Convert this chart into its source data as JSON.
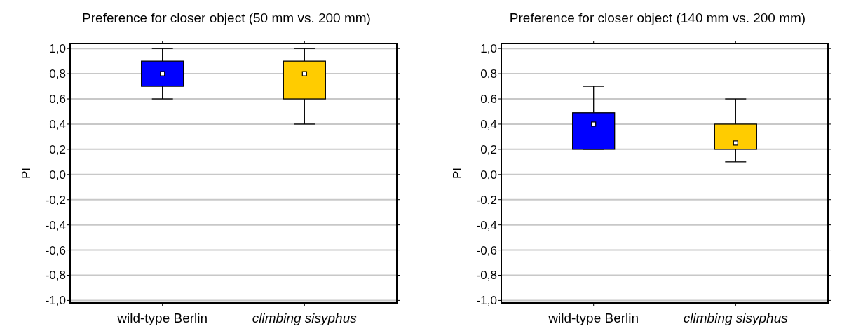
{
  "chart_data": [
    {
      "type": "box",
      "title": "Preference for closer object (50 mm vs. 200 mm)",
      "ylabel": "PI",
      "categories": [
        "wild-type Berlin",
        "climbing sisyphus"
      ],
      "colors": [
        "#0000ff",
        "#ffcc00"
      ],
      "boxes": [
        {
          "low": 0.6,
          "q1": 0.7,
          "median": 0.8,
          "q3": 0.9,
          "high": 1.0
        },
        {
          "low": 0.4,
          "q1": 0.6,
          "median": 0.8,
          "q3": 0.9,
          "high": 1.0
        }
      ],
      "ylim": [
        -1.02,
        1.04
      ],
      "yticks": [
        {
          "value": -1,
          "label": "-1,0"
        },
        {
          "value": -0.8,
          "label": "-0,8"
        },
        {
          "value": -0.6,
          "label": "-0,6"
        },
        {
          "value": -0.4,
          "label": "-0,4"
        },
        {
          "value": -0.2,
          "label": "-0,2"
        },
        {
          "value": 0,
          "label": "0,0"
        },
        {
          "value": 0.2,
          "label": "0,2"
        },
        {
          "value": 0.4,
          "label": "0,4"
        },
        {
          "value": 0.6,
          "label": "0,6"
        },
        {
          "value": 0.8,
          "label": "0,8"
        },
        {
          "value": 1,
          "label": "1,0"
        }
      ],
      "grid": "y"
    },
    {
      "type": "box",
      "title": "Preference for closer object (140 mm vs. 200 mm)",
      "ylabel": "PI",
      "categories": [
        "wild-type Berlin",
        "climbing sisyphus"
      ],
      "colors": [
        "#0000ff",
        "#ffcc00"
      ],
      "boxes": [
        {
          "low": 0.2,
          "q1": 0.2,
          "median": 0.4,
          "q3": 0.49,
          "high": 0.7
        },
        {
          "low": 0.1,
          "q1": 0.2,
          "median": 0.25,
          "q3": 0.4,
          "high": 0.6
        }
      ],
      "ylim": [
        -1.02,
        1.04
      ],
      "yticks": [
        {
          "value": -1,
          "label": "-1,0"
        },
        {
          "value": -0.8,
          "label": "-0,8"
        },
        {
          "value": -0.6,
          "label": "-0,6"
        },
        {
          "value": -0.4,
          "label": "-0,4"
        },
        {
          "value": -0.2,
          "label": "-0,2"
        },
        {
          "value": 0,
          "label": "0,0"
        },
        {
          "value": 0.2,
          "label": "0,2"
        },
        {
          "value": 0.4,
          "label": "0,4"
        },
        {
          "value": 0.6,
          "label": "0,6"
        },
        {
          "value": 0.8,
          "label": "0,8"
        },
        {
          "value": 1,
          "label": "1,0"
        }
      ],
      "grid": "y"
    }
  ]
}
